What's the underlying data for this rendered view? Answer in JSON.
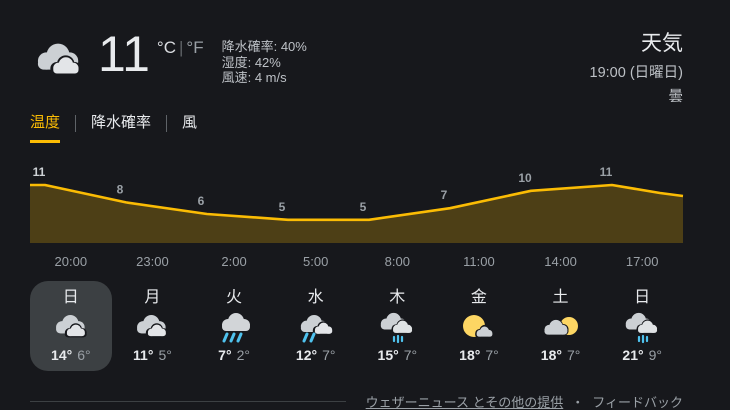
{
  "current": {
    "temp": "11",
    "unit_celsius": "°C",
    "unit_divider": "|",
    "unit_fahrenheit": "°F",
    "icon": "cloudy",
    "details": [
      {
        "label": "降水確率",
        "value": "40%"
      },
      {
        "label": "湿度",
        "value": "42%"
      },
      {
        "label": "風速",
        "value": "4 m/s"
      }
    ]
  },
  "header": {
    "title": "天気",
    "datetime": "19:00 (日曜日)",
    "condition": "曇"
  },
  "tabs": [
    {
      "label": "温度",
      "active": true
    },
    {
      "label": "降水確率",
      "active": false
    },
    {
      "label": "風",
      "active": false
    }
  ],
  "chart_data": {
    "type": "area",
    "series_name": "温度",
    "unit": "°C",
    "x": [
      "20:00",
      "23:00",
      "2:00",
      "5:00",
      "8:00",
      "11:00",
      "14:00",
      "17:00"
    ],
    "values": [
      11,
      8,
      6,
      5,
      5,
      7,
      10,
      11
    ],
    "ylim": [
      0,
      14
    ],
    "grid": false,
    "legend": false,
    "line_color": "#fbbc04",
    "fill_color": "rgba(251,188,4,0.24)",
    "current_label_color": "#ced2d6",
    "label_color": "#9aa0a6"
  },
  "daily": [
    {
      "day": "日",
      "icon": "cloudy",
      "high": "14°",
      "low": "6°",
      "selected": true
    },
    {
      "day": "月",
      "icon": "cloudy",
      "high": "11°",
      "low": "5°",
      "selected": false
    },
    {
      "day": "火",
      "icon": "rain",
      "high": "7°",
      "low": "2°",
      "selected": false
    },
    {
      "day": "水",
      "icon": "rain2",
      "high": "12°",
      "low": "7°",
      "selected": false
    },
    {
      "day": "木",
      "icon": "showers",
      "high": "15°",
      "low": "7°",
      "selected": false
    },
    {
      "day": "金",
      "icon": "sun-cloud",
      "high": "18°",
      "low": "7°",
      "selected": false
    },
    {
      "day": "土",
      "icon": "cloud-sun",
      "high": "18°",
      "low": "7°",
      "selected": false
    },
    {
      "day": "日",
      "icon": "showers",
      "high": "21°",
      "low": "9°",
      "selected": false
    }
  ],
  "footer": {
    "attribution": "ウェザーニュース とその他の提供",
    "separator": "・",
    "feedback": "フィードバック"
  },
  "colors": {
    "background": "#17181c",
    "accent": "#fbbc04",
    "selected_pill": "#3c4043",
    "text_primary": "#e8eaed",
    "text_secondary": "#bdc1c6",
    "text_muted": "#9aa0a6",
    "rain_blue": "#4fc2ee",
    "sun_yellow": "#fdd663"
  }
}
